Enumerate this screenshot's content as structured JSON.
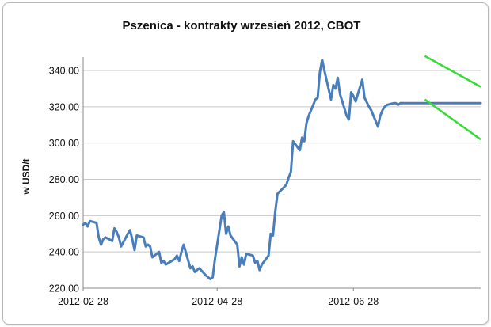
{
  "chart_data": {
    "type": "line",
    "title": "Pszenica - kontrakty wrzesień 2012, CBOT",
    "ylabel": "w USD/t",
    "xlabel": "",
    "ylim": [
      220,
      350
    ],
    "y_ticks": [
      "220,00",
      "240,00",
      "260,00",
      "280,00",
      "300,00",
      "320,00",
      "340,00"
    ],
    "y_tick_values": [
      220,
      240,
      260,
      280,
      300,
      320,
      340
    ],
    "x_ticks": [
      "2012-02-28",
      "2012-04-28",
      "2012-06-28"
    ],
    "x_tick_dates": [
      "2012-02-28",
      "2012-04-28",
      "2012-06-28"
    ],
    "x_range": [
      "2012-02-28",
      "2012-08-24"
    ],
    "grid": true,
    "series": [
      {
        "color": "#4a7ebb",
        "x": [
          "2012-02-28",
          "2012-02-29",
          "2012-03-01",
          "2012-03-02",
          "2012-03-05",
          "2012-03-06",
          "2012-03-07",
          "2012-03-08",
          "2012-03-09",
          "2012-03-12",
          "2012-03-13",
          "2012-03-14",
          "2012-03-15",
          "2012-03-16",
          "2012-03-19",
          "2012-03-20",
          "2012-03-21",
          "2012-03-22",
          "2012-03-23",
          "2012-03-26",
          "2012-03-27",
          "2012-03-28",
          "2012-03-29",
          "2012-03-30",
          "2012-04-02",
          "2012-04-03",
          "2012-04-04",
          "2012-04-05",
          "2012-04-09",
          "2012-04-10",
          "2012-04-11",
          "2012-04-12",
          "2012-04-13",
          "2012-04-16",
          "2012-04-17",
          "2012-04-18",
          "2012-04-19",
          "2012-04-20",
          "2012-04-23",
          "2012-04-24",
          "2012-04-25",
          "2012-04-26",
          "2012-04-27",
          "2012-04-30",
          "2012-05-01",
          "2012-05-02",
          "2012-05-03",
          "2012-05-04",
          "2012-05-07",
          "2012-05-08",
          "2012-05-09",
          "2012-05-10",
          "2012-05-11",
          "2012-05-14",
          "2012-05-15",
          "2012-05-16",
          "2012-05-17",
          "2012-05-18",
          "2012-05-21",
          "2012-05-22",
          "2012-05-23",
          "2012-05-24",
          "2012-05-25",
          "2012-05-29",
          "2012-05-30",
          "2012-05-31",
          "2012-06-01",
          "2012-06-04",
          "2012-06-05",
          "2012-06-06",
          "2012-06-07",
          "2012-06-08",
          "2012-06-11",
          "2012-06-12",
          "2012-06-13",
          "2012-06-14",
          "2012-06-15",
          "2012-06-18",
          "2012-06-19",
          "2012-06-20",
          "2012-06-21",
          "2012-06-22",
          "2012-06-25",
          "2012-06-26",
          "2012-06-27",
          "2012-06-28",
          "2012-06-29",
          "2012-07-02",
          "2012-07-03",
          "2012-07-05",
          "2012-07-06",
          "2012-07-09",
          "2012-07-10",
          "2012-07-11",
          "2012-07-12",
          "2012-07-13",
          "2012-07-16",
          "2012-07-17",
          "2012-07-18",
          "2012-07-19",
          "2012-07-20",
          "2012-07-23",
          "2012-07-24",
          "2012-07-25",
          "2012-07-26",
          "2012-07-27",
          "2012-07-30",
          "2012-07-31",
          "2012-08-01",
          "2012-08-02",
          "2012-08-03",
          "2012-08-06",
          "2012-08-07",
          "2012-08-08",
          "2012-08-09",
          "2012-08-10",
          "2012-08-13",
          "2012-08-14",
          "2012-08-15",
          "2012-08-16",
          "2012-08-17",
          "2012-08-20",
          "2012-08-21",
          "2012-08-22",
          "2012-08-23",
          "2012-08-24"
        ],
        "y": [
          255,
          256,
          254,
          257,
          256,
          248,
          244,
          247,
          248,
          246,
          253,
          251,
          248,
          243,
          250,
          252,
          247,
          241,
          249,
          248,
          243,
          244,
          243,
          237,
          240,
          234,
          235,
          233,
          236,
          238,
          235,
          240,
          244,
          231,
          232,
          229,
          230,
          231,
          227,
          226,
          225,
          226,
          236,
          260,
          262,
          250,
          254,
          249,
          244,
          232,
          237,
          233,
          239,
          238,
          234,
          235,
          230,
          233,
          238,
          250,
          249,
          262,
          272,
          277,
          281,
          284,
          301,
          296,
          303,
          301,
          311,
          315,
          324,
          325,
          339,
          346,
          340,
          324,
          332,
          330,
          336,
          327,
          315,
          313,
          328,
          326,
          323,
          335,
          325,
          320,
          318,
          309,
          315,
          318,
          320,
          321,
          322,
          322,
          321,
          322,
          322,
          322,
          322,
          322,
          322,
          322,
          322,
          322,
          322,
          322,
          322,
          322,
          322,
          322,
          322,
          322,
          322,
          322,
          322,
          322,
          322,
          322,
          322,
          322,
          322,
          322
        ]
      }
    ],
    "annotations": [
      {
        "type": "trend-line",
        "color": "#33dd33",
        "from": [
          "2012-07-30",
          348
        ],
        "to": [
          "2012-08-24",
          331
        ]
      },
      {
        "type": "trend-line",
        "color": "#33dd33",
        "from": [
          "2012-07-30",
          324
        ],
        "to": [
          "2012-08-24",
          302
        ]
      }
    ]
  }
}
